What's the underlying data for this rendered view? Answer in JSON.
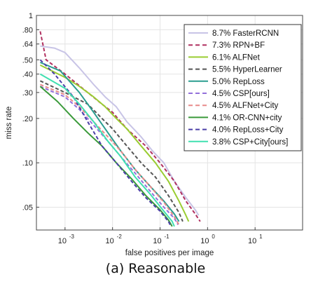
{
  "chart_data": {
    "type": "line",
    "caption": "(a) Reasonable",
    "xlabel": "false positives per image",
    "ylabel": "miss rate",
    "x_scale": "log",
    "y_scale": "log",
    "xlim": [
      0.00025,
      100
    ],
    "ylim": [
      0.035,
      1
    ],
    "x_ticks": [
      {
        "value": 0.001,
        "base": "10",
        "exp": "-3"
      },
      {
        "value": 0.01,
        "base": "10",
        "exp": "-2"
      },
      {
        "value": 0.1,
        "base": "10",
        "exp": "-1"
      },
      {
        "value": 1,
        "base": "10",
        "exp": "0"
      },
      {
        "value": 10,
        "base": "10",
        "exp": "1"
      }
    ],
    "y_ticks": [
      {
        "value": 1,
        "label": "1"
      },
      {
        "value": 0.8,
        "label": ".80"
      },
      {
        "value": 0.64,
        "label": ".64"
      },
      {
        "value": 0.5,
        "label": ".50"
      },
      {
        "value": 0.4,
        "label": ".40"
      },
      {
        "value": 0.3,
        "label": ".30"
      },
      {
        "value": 0.2,
        "label": ".20"
      },
      {
        "value": 0.1,
        "label": ".10"
      },
      {
        "value": 0.05,
        "label": ".05"
      }
    ],
    "legend_position": "top-right",
    "series": [
      {
        "name": "8.7% FasterRCNN",
        "color": "#c8c4e6",
        "dash": "solid",
        "points": [
          [
            0.0003,
            0.62
          ],
          [
            0.0006,
            0.6
          ],
          [
            0.001,
            0.56
          ],
          [
            0.002,
            0.44
          ],
          [
            0.004,
            0.34
          ],
          [
            0.007,
            0.28
          ],
          [
            0.012,
            0.24
          ],
          [
            0.02,
            0.19
          ],
          [
            0.04,
            0.15
          ],
          [
            0.07,
            0.12
          ],
          [
            0.12,
            0.1
          ],
          [
            0.2,
            0.075
          ],
          [
            0.35,
            0.058
          ],
          [
            0.55,
            0.048
          ],
          [
            0.65,
            0.044
          ]
        ]
      },
      {
        "name": "7.3% RPN+BF",
        "color": "#b03060",
        "dash": "dashed",
        "points": [
          [
            0.0003,
            0.78
          ],
          [
            0.0004,
            0.5
          ],
          [
            0.001,
            0.4
          ],
          [
            0.003,
            0.3
          ],
          [
            0.006,
            0.25
          ],
          [
            0.01,
            0.22
          ],
          [
            0.02,
            0.17
          ],
          [
            0.05,
            0.13
          ],
          [
            0.1,
            0.1
          ],
          [
            0.2,
            0.075
          ],
          [
            0.35,
            0.055
          ],
          [
            0.55,
            0.045
          ],
          [
            0.7,
            0.04
          ]
        ]
      },
      {
        "name": "6.1% ALFNet",
        "color": "#9acd32",
        "dash": "solid",
        "points": [
          [
            0.0003,
            0.46
          ],
          [
            0.001,
            0.38
          ],
          [
            0.002,
            0.33
          ],
          [
            0.004,
            0.28
          ],
          [
            0.007,
            0.24
          ],
          [
            0.012,
            0.2
          ],
          [
            0.02,
            0.17
          ],
          [
            0.04,
            0.13
          ],
          [
            0.08,
            0.1
          ],
          [
            0.15,
            0.075
          ],
          [
            0.25,
            0.055
          ],
          [
            0.35,
            0.044
          ],
          [
            0.4,
            0.04
          ]
        ]
      },
      {
        "name": "5.5% HyperLearner",
        "color": "#555555",
        "dash": "dashed",
        "points": [
          [
            0.0003,
            0.36
          ],
          [
            0.001,
            0.3
          ],
          [
            0.003,
            0.25
          ],
          [
            0.006,
            0.2
          ],
          [
            0.01,
            0.17
          ],
          [
            0.02,
            0.13
          ],
          [
            0.04,
            0.1
          ],
          [
            0.08,
            0.08
          ],
          [
            0.15,
            0.06
          ],
          [
            0.25,
            0.046
          ],
          [
            0.3,
            0.04
          ]
        ]
      },
      {
        "name": "5.0% RepLoss",
        "color": "#2a9d8f",
        "dash": "solid",
        "points": [
          [
            0.0003,
            0.48
          ],
          [
            0.0008,
            0.42
          ],
          [
            0.002,
            0.3
          ],
          [
            0.004,
            0.22
          ],
          [
            0.008,
            0.16
          ],
          [
            0.015,
            0.12
          ],
          [
            0.03,
            0.09
          ],
          [
            0.06,
            0.07
          ],
          [
            0.12,
            0.055
          ],
          [
            0.2,
            0.045
          ],
          [
            0.25,
            0.04
          ]
        ]
      },
      {
        "name": "4.5% CSP[ours]",
        "color": "#9370db",
        "dash": "dashed",
        "points": [
          [
            0.0003,
            0.33
          ],
          [
            0.001,
            0.28
          ],
          [
            0.002,
            0.23
          ],
          [
            0.004,
            0.18
          ],
          [
            0.008,
            0.14
          ],
          [
            0.015,
            0.11
          ],
          [
            0.03,
            0.085
          ],
          [
            0.06,
            0.065
          ],
          [
            0.12,
            0.05
          ],
          [
            0.2,
            0.042
          ],
          [
            0.24,
            0.038
          ]
        ]
      },
      {
        "name": "4.5% ALFNet+City",
        "color": "#e88a8a",
        "dash": "dashed",
        "points": [
          [
            0.0003,
            0.34
          ],
          [
            0.001,
            0.29
          ],
          [
            0.002,
            0.24
          ],
          [
            0.004,
            0.19
          ],
          [
            0.008,
            0.15
          ],
          [
            0.015,
            0.12
          ],
          [
            0.03,
            0.09
          ],
          [
            0.06,
            0.07
          ],
          [
            0.12,
            0.054
          ],
          [
            0.2,
            0.043
          ],
          [
            0.25,
            0.038
          ]
        ]
      },
      {
        "name": "4.1% OR-CNN+city",
        "color": "#3a9a3a",
        "dash": "solid",
        "points": [
          [
            0.0003,
            0.33
          ],
          [
            0.0007,
            0.26
          ],
          [
            0.0015,
            0.2
          ],
          [
            0.003,
            0.16
          ],
          [
            0.006,
            0.13
          ],
          [
            0.012,
            0.1
          ],
          [
            0.025,
            0.078
          ],
          [
            0.05,
            0.06
          ],
          [
            0.1,
            0.048
          ],
          [
            0.15,
            0.041
          ],
          [
            0.18,
            0.037
          ]
        ]
      },
      {
        "name": "4.0% RepLoss+City",
        "color": "#4b3fa8",
        "dash": "dashed",
        "points": [
          [
            0.0003,
            0.5
          ],
          [
            0.0006,
            0.4
          ],
          [
            0.0015,
            0.28
          ],
          [
            0.003,
            0.19
          ],
          [
            0.006,
            0.13
          ],
          [
            0.012,
            0.1
          ],
          [
            0.025,
            0.075
          ],
          [
            0.05,
            0.058
          ],
          [
            0.1,
            0.047
          ],
          [
            0.15,
            0.04
          ],
          [
            0.17,
            0.037
          ]
        ]
      },
      {
        "name": "3.8% CSP+City[ours]",
        "color": "#40e0b0",
        "dash": "solid",
        "points": [
          [
            0.0003,
            0.4
          ],
          [
            0.001,
            0.32
          ],
          [
            0.002,
            0.25
          ],
          [
            0.004,
            0.19
          ],
          [
            0.008,
            0.14
          ],
          [
            0.015,
            0.11
          ],
          [
            0.03,
            0.08
          ],
          [
            0.06,
            0.062
          ],
          [
            0.12,
            0.047
          ],
          [
            0.18,
            0.04
          ],
          [
            0.2,
            0.037
          ]
        ]
      }
    ]
  }
}
